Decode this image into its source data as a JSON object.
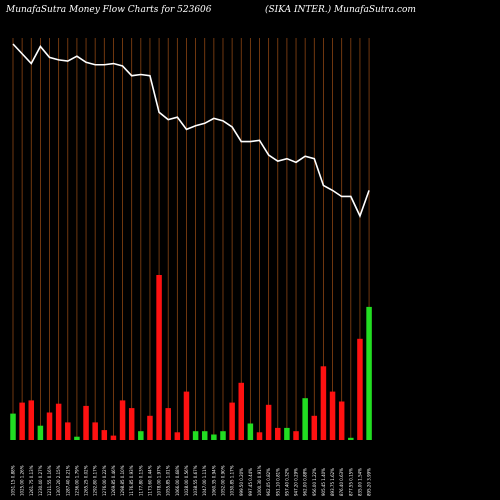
{
  "header": {
    "left_title": "MunafaSutra  Money Flow  Charts for 523606",
    "right_title": "(SIKA INTER.) MunafaSutra.com"
  },
  "colors": {
    "background": "#000000",
    "gridline": "#8B4513",
    "price_line": "#ffffff",
    "inflow_bar": "#22dd22",
    "outflow_bar": "#ff1111",
    "label_text": "#ffffff"
  },
  "chart_data": {
    "type": "bar",
    "title": "MunafaSutra  Money Flow  Charts for 523606",
    "subtitle": "(SIKA INTER.) MunafaSutra.com",
    "grid": true,
    "categories": [
      "1051.15 0.88%",
      "1025.00 1.26%",
      "1261.75 0.13%",
      "1230.40 0.27%",
      "1211.55 0.16%",
      "1307.20 2.15%",
      "1287.40 0.21%",
      "1236.00 1.79%",
      "1265.25 0.02%",
      "1292.80 0.17%",
      "1276.00 0.22%",
      "1269.85 0.46%",
      "1298.85 0.10%",
      "1176.85 0.93%",
      "1177.80 0.13%",
      "1173.60 0.44%",
      "1078.00 1.97%",
      "1055.85 1.01%",
      "1066.00 0.68%",
      "1028.00 0.56%",
      "1038.55 0.67%",
      "1047.00 1.11%",
      "1060.35 0.94%",
      "1052.00 0.90%",
      "1030.85 1.17%",
      "999.50 0.20%",
      "997.45 0.44%",
      "1000.30 0.91%",
      "962.05 0.82%",
      "951.10 0.81%",
      "957.40 0.32%",
      "947.20 0.29%",
      "962.00 0.88%",
      "956.00 1.22%",
      "905.45 1.40%",
      "893.75 1.62%",
      "876.40 0.63%",
      "877.55 0.15%",
      "835.00 1.54%",
      "895.20 3.99%"
    ],
    "money_flow": [
      {
        "v": 24,
        "dir": "in"
      },
      {
        "v": 34,
        "dir": "out"
      },
      {
        "v": 36,
        "dir": "out"
      },
      {
        "v": 13,
        "dir": "in"
      },
      {
        "v": 25,
        "dir": "out"
      },
      {
        "v": 33,
        "dir": "out"
      },
      {
        "v": 16,
        "dir": "out"
      },
      {
        "v": 3,
        "dir": "in"
      },
      {
        "v": 31,
        "dir": "out"
      },
      {
        "v": 16,
        "dir": "out"
      },
      {
        "v": 9,
        "dir": "out"
      },
      {
        "v": 4,
        "dir": "out"
      },
      {
        "v": 36,
        "dir": "out"
      },
      {
        "v": 29,
        "dir": "out"
      },
      {
        "v": 8,
        "dir": "in"
      },
      {
        "v": 22,
        "dir": "out"
      },
      {
        "v": 150,
        "dir": "out"
      },
      {
        "v": 29,
        "dir": "out"
      },
      {
        "v": 7,
        "dir": "out"
      },
      {
        "v": 44,
        "dir": "out"
      },
      {
        "v": 8,
        "dir": "in"
      },
      {
        "v": 8,
        "dir": "in"
      },
      {
        "v": 5,
        "dir": "in"
      },
      {
        "v": 8,
        "dir": "in"
      },
      {
        "v": 34,
        "dir": "out"
      },
      {
        "v": 52,
        "dir": "out"
      },
      {
        "v": 15,
        "dir": "in"
      },
      {
        "v": 7,
        "dir": "out"
      },
      {
        "v": 32,
        "dir": "out"
      },
      {
        "v": 11,
        "dir": "out"
      },
      {
        "v": 11,
        "dir": "in"
      },
      {
        "v": 8,
        "dir": "out"
      },
      {
        "v": 38,
        "dir": "in"
      },
      {
        "v": 22,
        "dir": "out"
      },
      {
        "v": 67,
        "dir": "out"
      },
      {
        "v": 44,
        "dir": "out"
      },
      {
        "v": 35,
        "dir": "out"
      },
      {
        "v": 2,
        "dir": "in"
      },
      {
        "v": 92,
        "dir": "out"
      },
      {
        "v": 121,
        "dir": "in"
      }
    ],
    "price": [
      1340,
      1332,
      1324,
      1338,
      1329,
      1327,
      1326,
      1330,
      1325,
      1323,
      1323,
      1324,
      1322,
      1314,
      1315,
      1314,
      1284,
      1278,
      1280,
      1270,
      1273,
      1275,
      1279,
      1277,
      1272,
      1260,
      1260,
      1261,
      1249,
      1244,
      1246,
      1243,
      1248,
      1246,
      1224,
      1220,
      1215,
      1215,
      1199,
      1220
    ],
    "flow_scale_max": 150
  }
}
